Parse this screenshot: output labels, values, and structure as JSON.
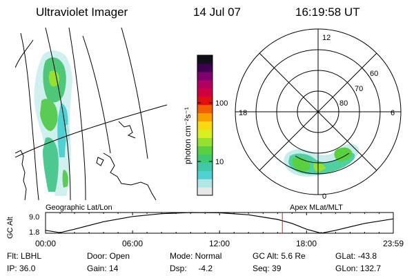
{
  "header": {
    "title": "Ultraviolet Imager",
    "date": "14 Jul 07",
    "time": "16:19:58 UT"
  },
  "colorbar": {
    "label": "photon cm⁻²s⁻¹",
    "ticks": [
      "100",
      "10"
    ],
    "colors": [
      "#e8e8e8",
      "#b0e6e6",
      "#50d0d0",
      "#40c8a8",
      "#3ec870",
      "#58d040",
      "#98e030",
      "#d8f020",
      "#f8d810",
      "#f8a000",
      "#f06000",
      "#e01010",
      "#d00040",
      "#b00060",
      "#800070",
      "#400050",
      "#101018"
    ]
  },
  "map_left": {
    "caption": "Geographic Lat/Lon"
  },
  "map_right": {
    "caption": "Apex MLat/MLT",
    "mlt_labels": [
      "12",
      "18",
      "6",
      "0"
    ],
    "mlat_labels": [
      "60",
      "70",
      "80"
    ]
  },
  "altitude_plot": {
    "ylabel": "GC Alt",
    "y_ticks": [
      "9.0",
      "1.8"
    ],
    "x_ticks": [
      "00:00",
      "06:00",
      "12:00",
      "18:00",
      "23:59"
    ],
    "current_time_hours": 16.33,
    "marker_color": "#cc2020"
  },
  "info": {
    "filter": "Flt: LBHL",
    "ip": "IP: 36.0",
    "door": "Door: Open",
    "gain": "Gain: 14",
    "mode": "Mode: Normal",
    "dsp": "Dsp:     -4.2",
    "gc_alt": "GC Alt: 5.6 Re",
    "seq": "Seq: 39",
    "glat": "GLat: -43.8",
    "glon": "GLon: 132.7"
  },
  "chart_data": {
    "type": "line",
    "title": "",
    "xlabel": "",
    "ylabel": "GC Alt",
    "x": [
      0,
      1,
      2,
      4,
      6,
      8,
      10,
      12,
      14,
      16,
      17,
      18,
      19,
      20,
      22,
      23.98
    ],
    "series": [
      {
        "values": [
          2.8,
          2.0,
          3.2,
          5.8,
          7.6,
          8.6,
          9.0,
          8.9,
          8.2,
          6.6,
          5.2,
          3.2,
          1.8,
          2.8,
          5.2,
          6.8
        ]
      }
    ],
    "xlim": [
      0,
      23.98
    ],
    "ylim": [
      1.8,
      9.0
    ]
  }
}
